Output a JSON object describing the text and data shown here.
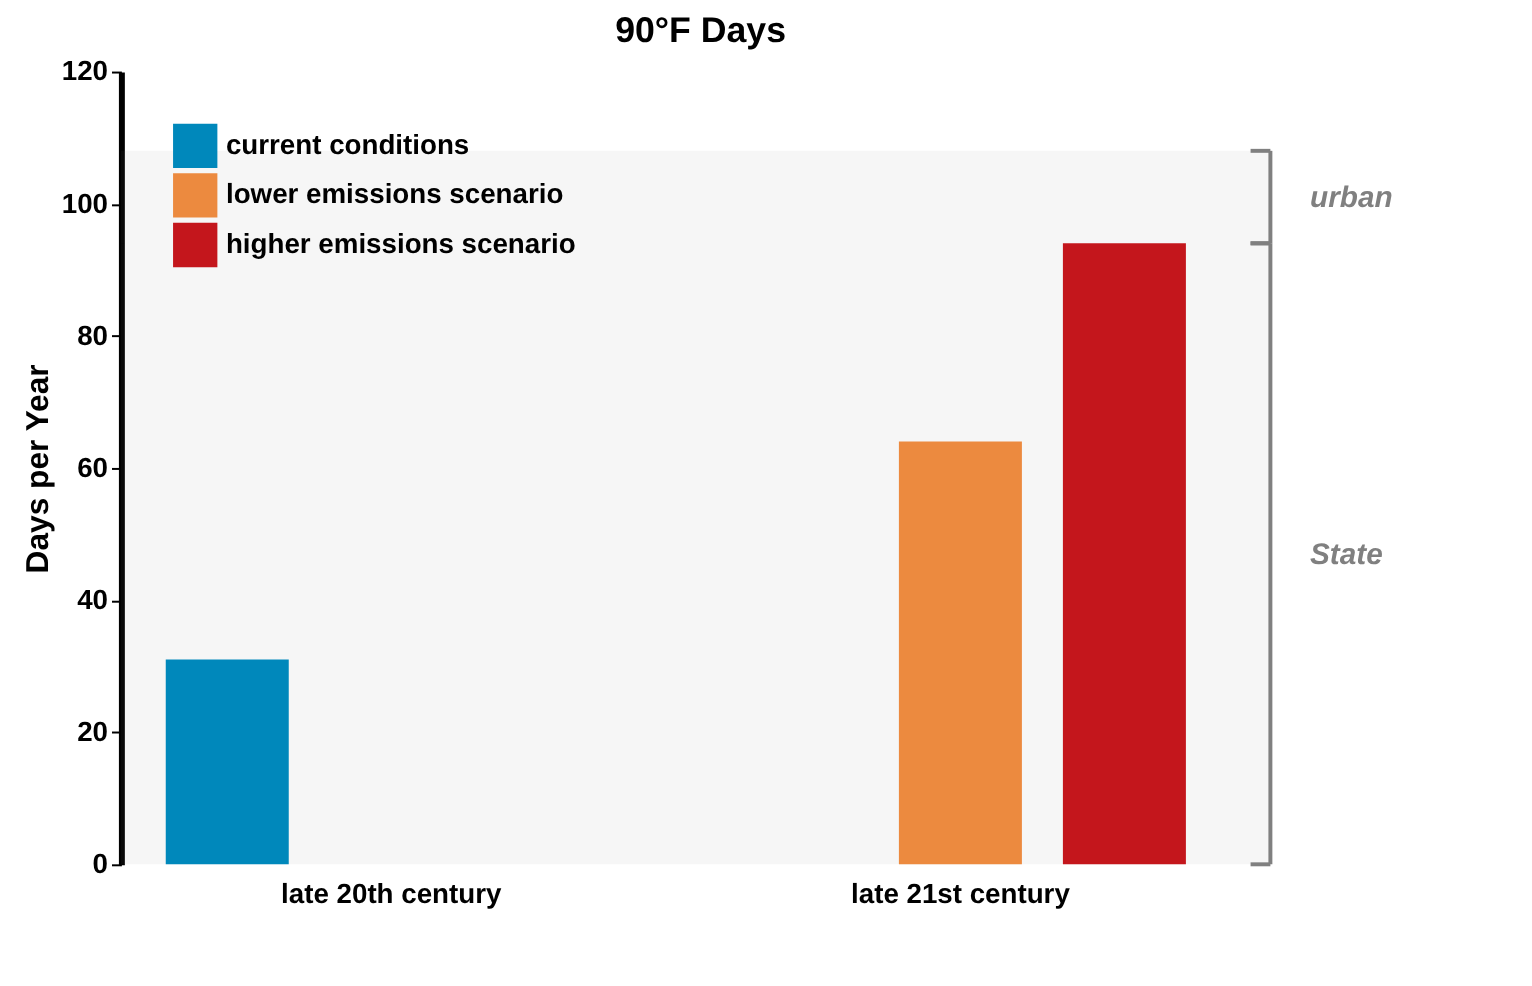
{
  "chart_data": {
    "type": "bar",
    "title": "90°F Days",
    "ylabel": "Days per Year",
    "categories": [
      "late 20th century",
      "late 21st century"
    ],
    "series": [
      {
        "name": "current conditions",
        "color": "#0088bb",
        "values": [
          31,
          null
        ]
      },
      {
        "name": "lower emissions scenario",
        "color": "#ec8a3f",
        "values": [
          null,
          64
        ]
      },
      {
        "name": "higher emissions scenario",
        "color": "#c4161c",
        "values": [
          null,
          94
        ]
      }
    ],
    "ylim": [
      0,
      120
    ],
    "yticks": [
      0,
      20,
      40,
      60,
      80,
      100,
      120
    ],
    "grid": false,
    "legend": "top left",
    "bands": [
      {
        "axis": "y",
        "from": 0,
        "to": 94,
        "label": "State",
        "color": "#808080"
      },
      {
        "axis": "y",
        "from": 94,
        "to": 108,
        "label": "urban",
        "color": "#808080"
      }
    ]
  }
}
